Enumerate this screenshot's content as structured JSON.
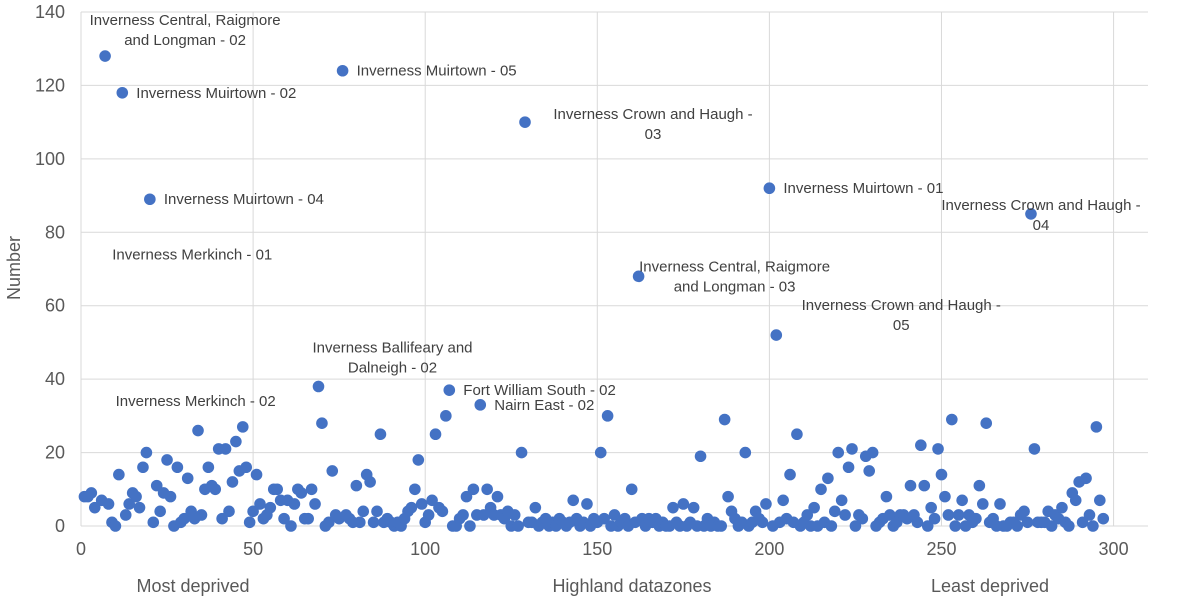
{
  "chart_data": {
    "type": "scatter",
    "title": "",
    "xlabel": "Highland  datazones",
    "ylabel": "Number",
    "xlabel_left": "Most deprived",
    "xlabel_right": "Least deprived",
    "xlim": [
      0,
      310
    ],
    "ylim": [
      0,
      140
    ],
    "xticks": [
      0,
      50,
      100,
      150,
      200,
      250,
      300
    ],
    "yticks": [
      0,
      20,
      40,
      60,
      80,
      100,
      120,
      140
    ],
    "grid": true,
    "legend": "none",
    "marker_color": "#4472c4",
    "points": [
      [
        1,
        8
      ],
      [
        2,
        8
      ],
      [
        3,
        9
      ],
      [
        4,
        5
      ],
      [
        6,
        7
      ],
      [
        7,
        128
      ],
      [
        8,
        6
      ],
      [
        9,
        1
      ],
      [
        10,
        0
      ],
      [
        11,
        14
      ],
      [
        12,
        118
      ],
      [
        13,
        3
      ],
      [
        14,
        6
      ],
      [
        15,
        9
      ],
      [
        16,
        8
      ],
      [
        17,
        5
      ],
      [
        18,
        16
      ],
      [
        19,
        20
      ],
      [
        20,
        89
      ],
      [
        21,
        1
      ],
      [
        22,
        11
      ],
      [
        23,
        4
      ],
      [
        24,
        9
      ],
      [
        25,
        18
      ],
      [
        26,
        8
      ],
      [
        27,
        0
      ],
      [
        28,
        16
      ],
      [
        29,
        1
      ],
      [
        30,
        2
      ],
      [
        31,
        13
      ],
      [
        32,
        4
      ],
      [
        33,
        2
      ],
      [
        34,
        26
      ],
      [
        35,
        3
      ],
      [
        36,
        10
      ],
      [
        37,
        16
      ],
      [
        38,
        11
      ],
      [
        39,
        10
      ],
      [
        40,
        21
      ],
      [
        41,
        2
      ],
      [
        42,
        21
      ],
      [
        43,
        4
      ],
      [
        44,
        12
      ],
      [
        45,
        23
      ],
      [
        46,
        15
      ],
      [
        47,
        27
      ],
      [
        48,
        16
      ],
      [
        49,
        1
      ],
      [
        50,
        4
      ],
      [
        51,
        14
      ],
      [
        52,
        6
      ],
      [
        53,
        2
      ],
      [
        54,
        3
      ],
      [
        55,
        5
      ],
      [
        56,
        10
      ],
      [
        57,
        10
      ],
      [
        58,
        7
      ],
      [
        59,
        2
      ],
      [
        60,
        7
      ],
      [
        61,
        0
      ],
      [
        62,
        6
      ],
      [
        63,
        10
      ],
      [
        64,
        9
      ],
      [
        65,
        2
      ],
      [
        66,
        2
      ],
      [
        67,
        10
      ],
      [
        68,
        6
      ],
      [
        69,
        38
      ],
      [
        70,
        28
      ],
      [
        71,
        0
      ],
      [
        72,
        1
      ],
      [
        73,
        15
      ],
      [
        74,
        3
      ],
      [
        75,
        2
      ],
      [
        76,
        124
      ],
      [
        77,
        3
      ],
      [
        78,
        2
      ],
      [
        79,
        1
      ],
      [
        80,
        11
      ],
      [
        81,
        1
      ],
      [
        82,
        4
      ],
      [
        83,
        14
      ],
      [
        84,
        12
      ],
      [
        85,
        1
      ],
      [
        86,
        4
      ],
      [
        87,
        25
      ],
      [
        88,
        1
      ],
      [
        89,
        2
      ],
      [
        90,
        1
      ],
      [
        91,
        0
      ],
      [
        92,
        1
      ],
      [
        93,
        0
      ],
      [
        94,
        2
      ],
      [
        95,
        4
      ],
      [
        96,
        5
      ],
      [
        97,
        10
      ],
      [
        98,
        18
      ],
      [
        99,
        6
      ],
      [
        100,
        1
      ],
      [
        101,
        3
      ],
      [
        102,
        7
      ],
      [
        103,
        25
      ],
      [
        104,
        5
      ],
      [
        105,
        4
      ],
      [
        106,
        30
      ],
      [
        107,
        37
      ],
      [
        108,
        0
      ],
      [
        109,
        0
      ],
      [
        110,
        2
      ],
      [
        111,
        3
      ],
      [
        112,
        8
      ],
      [
        113,
        0
      ],
      [
        114,
        10
      ],
      [
        115,
        3
      ],
      [
        116,
        33
      ],
      [
        117,
        3
      ],
      [
        118,
        10
      ],
      [
        119,
        5
      ],
      [
        120,
        3
      ],
      [
        121,
        8
      ],
      [
        122,
        3
      ],
      [
        123,
        2
      ],
      [
        124,
        4
      ],
      [
        125,
        0
      ],
      [
        126,
        3
      ],
      [
        127,
        0
      ],
      [
        128,
        20
      ],
      [
        129,
        110
      ],
      [
        130,
        1
      ],
      [
        131,
        1
      ],
      [
        132,
        5
      ],
      [
        133,
        0
      ],
      [
        134,
        1
      ],
      [
        135,
        2
      ],
      [
        136,
        0
      ],
      [
        137,
        1
      ],
      [
        138,
        0
      ],
      [
        139,
        2
      ],
      [
        140,
        1
      ],
      [
        141,
        0
      ],
      [
        142,
        1
      ],
      [
        143,
        7
      ],
      [
        144,
        2
      ],
      [
        145,
        0
      ],
      [
        146,
        1
      ],
      [
        147,
        6
      ],
      [
        148,
        0
      ],
      [
        149,
        2
      ],
      [
        150,
        1
      ],
      [
        151,
        20
      ],
      [
        152,
        2
      ],
      [
        153,
        30
      ],
      [
        154,
        0
      ],
      [
        155,
        3
      ],
      [
        156,
        0
      ],
      [
        157,
        1
      ],
      [
        158,
        2
      ],
      [
        159,
        0
      ],
      [
        160,
        10
      ],
      [
        161,
        1
      ],
      [
        162,
        68
      ],
      [
        163,
        2
      ],
      [
        164,
        0
      ],
      [
        165,
        2
      ],
      [
        166,
        1
      ],
      [
        167,
        2
      ],
      [
        168,
        0
      ],
      [
        169,
        1
      ],
      [
        170,
        0
      ],
      [
        171,
        0
      ],
      [
        172,
        5
      ],
      [
        173,
        1
      ],
      [
        174,
        0
      ],
      [
        175,
        6
      ],
      [
        176,
        0
      ],
      [
        177,
        1
      ],
      [
        178,
        5
      ],
      [
        179,
        0
      ],
      [
        180,
        19
      ],
      [
        181,
        0
      ],
      [
        182,
        2
      ],
      [
        183,
        0
      ],
      [
        184,
        1
      ],
      [
        185,
        0
      ],
      [
        186,
        0
      ],
      [
        187,
        29
      ],
      [
        188,
        8
      ],
      [
        189,
        4
      ],
      [
        190,
        2
      ],
      [
        191,
        0
      ],
      [
        192,
        1
      ],
      [
        193,
        20
      ],
      [
        194,
        0
      ],
      [
        195,
        1
      ],
      [
        196,
        4
      ],
      [
        197,
        2
      ],
      [
        198,
        1
      ],
      [
        199,
        6
      ],
      [
        200,
        92
      ],
      [
        201,
        0
      ],
      [
        202,
        52
      ],
      [
        203,
        1
      ],
      [
        204,
        7
      ],
      [
        205,
        2
      ],
      [
        206,
        14
      ],
      [
        207,
        1
      ],
      [
        208,
        25
      ],
      [
        209,
        0
      ],
      [
        210,
        1
      ],
      [
        211,
        3
      ],
      [
        212,
        0
      ],
      [
        213,
        5
      ],
      [
        214,
        0
      ],
      [
        215,
        10
      ],
      [
        216,
        1
      ],
      [
        217,
        13
      ],
      [
        218,
        0
      ],
      [
        219,
        4
      ],
      [
        220,
        20
      ],
      [
        221,
        7
      ],
      [
        222,
        3
      ],
      [
        223,
        16
      ],
      [
        224,
        21
      ],
      [
        225,
        0
      ],
      [
        226,
        3
      ],
      [
        227,
        2
      ],
      [
        228,
        19
      ],
      [
        229,
        15
      ],
      [
        230,
        20
      ],
      [
        231,
        0
      ],
      [
        232,
        1
      ],
      [
        233,
        2
      ],
      [
        234,
        8
      ],
      [
        235,
        3
      ],
      [
        236,
        0
      ],
      [
        237,
        1
      ],
      [
        238,
        3
      ],
      [
        239,
        3
      ],
      [
        240,
        2
      ],
      [
        241,
        11
      ],
      [
        242,
        3
      ],
      [
        243,
        1
      ],
      [
        244,
        22
      ],
      [
        245,
        11
      ],
      [
        246,
        0
      ],
      [
        247,
        5
      ],
      [
        248,
        2
      ],
      [
        249,
        21
      ],
      [
        250,
        14
      ],
      [
        251,
        8
      ],
      [
        252,
        3
      ],
      [
        253,
        29
      ],
      [
        254,
        0
      ],
      [
        255,
        3
      ],
      [
        256,
        7
      ],
      [
        257,
        0
      ],
      [
        258,
        3
      ],
      [
        259,
        1
      ],
      [
        260,
        2
      ],
      [
        261,
        11
      ],
      [
        262,
        6
      ],
      [
        263,
        28
      ],
      [
        264,
        1
      ],
      [
        265,
        2
      ],
      [
        266,
        0
      ],
      [
        267,
        6
      ],
      [
        268,
        0
      ],
      [
        269,
        0
      ],
      [
        270,
        1
      ],
      [
        271,
        1
      ],
      [
        272,
        0
      ],
      [
        273,
        3
      ],
      [
        274,
        4
      ],
      [
        275,
        1
      ],
      [
        276,
        85
      ],
      [
        277,
        21
      ],
      [
        278,
        1
      ],
      [
        279,
        1
      ],
      [
        280,
        1
      ],
      [
        281,
        4
      ],
      [
        282,
        0
      ],
      [
        283,
        3
      ],
      [
        284,
        2
      ],
      [
        285,
        5
      ],
      [
        286,
        1
      ],
      [
        287,
        0
      ],
      [
        288,
        9
      ],
      [
        289,
        7
      ],
      [
        290,
        12
      ],
      [
        291,
        1
      ],
      [
        292,
        13
      ],
      [
        293,
        3
      ],
      [
        294,
        0
      ],
      [
        295,
        27
      ],
      [
        296,
        7
      ],
      [
        297,
        2
      ]
    ],
    "annotations": [
      {
        "lines": [
          "Inverness Central, Raigmore",
          "and Longman  - 02"
        ],
        "anchor": "middle",
        "x": 7,
        "y": 128
      },
      {
        "lines": [
          "Inverness Muirtown - 02"
        ],
        "anchor": "start",
        "x": 12,
        "y": 118
      },
      {
        "lines": [
          "Inverness Muirtown - 05"
        ],
        "anchor": "start",
        "x": 76,
        "y": 124
      },
      {
        "lines": [
          "Inverness Crown and Haugh -",
          "03"
        ],
        "anchor": "middle",
        "x": 129,
        "y": 110
      },
      {
        "lines": [
          "Inverness Muirtown - 04"
        ],
        "anchor": "start",
        "x": 20,
        "y": 89
      },
      {
        "lines": [
          "Inverness Muirtown - 01"
        ],
        "anchor": "start",
        "x": 200,
        "y": 92
      },
      {
        "lines": [
          "Inverness Crown and Haugh -",
          "04"
        ],
        "anchor": "middle",
        "x": 276,
        "y": 85
      },
      {
        "lines": [
          "Inverness Merkinch - 01"
        ],
        "anchor": "start",
        "x": 5,
        "y": 74
      },
      {
        "lines": [
          "Inverness Central, Raigmore",
          "and Longman - 03"
        ],
        "anchor": "middle",
        "x": 162,
        "y": 68
      },
      {
        "lines": [
          "Inverness Crown and Haugh -",
          "05"
        ],
        "anchor": "middle",
        "x": 202,
        "y": 52
      },
      {
        "lines": [
          "Inverness Ballifeary and",
          "Dalneigh - 02"
        ],
        "anchor": "middle",
        "x": 69,
        "y": 38
      },
      {
        "lines": [
          "Fort William South - 02"
        ],
        "anchor": "start",
        "x": 107,
        "y": 37
      },
      {
        "lines": [
          "Nairn East - 02"
        ],
        "anchor": "start",
        "x": 116,
        "y": 33
      },
      {
        "lines": [
          "Inverness Merkinch - 02"
        ],
        "anchor": "start",
        "x": 6,
        "y": 34
      }
    ]
  }
}
